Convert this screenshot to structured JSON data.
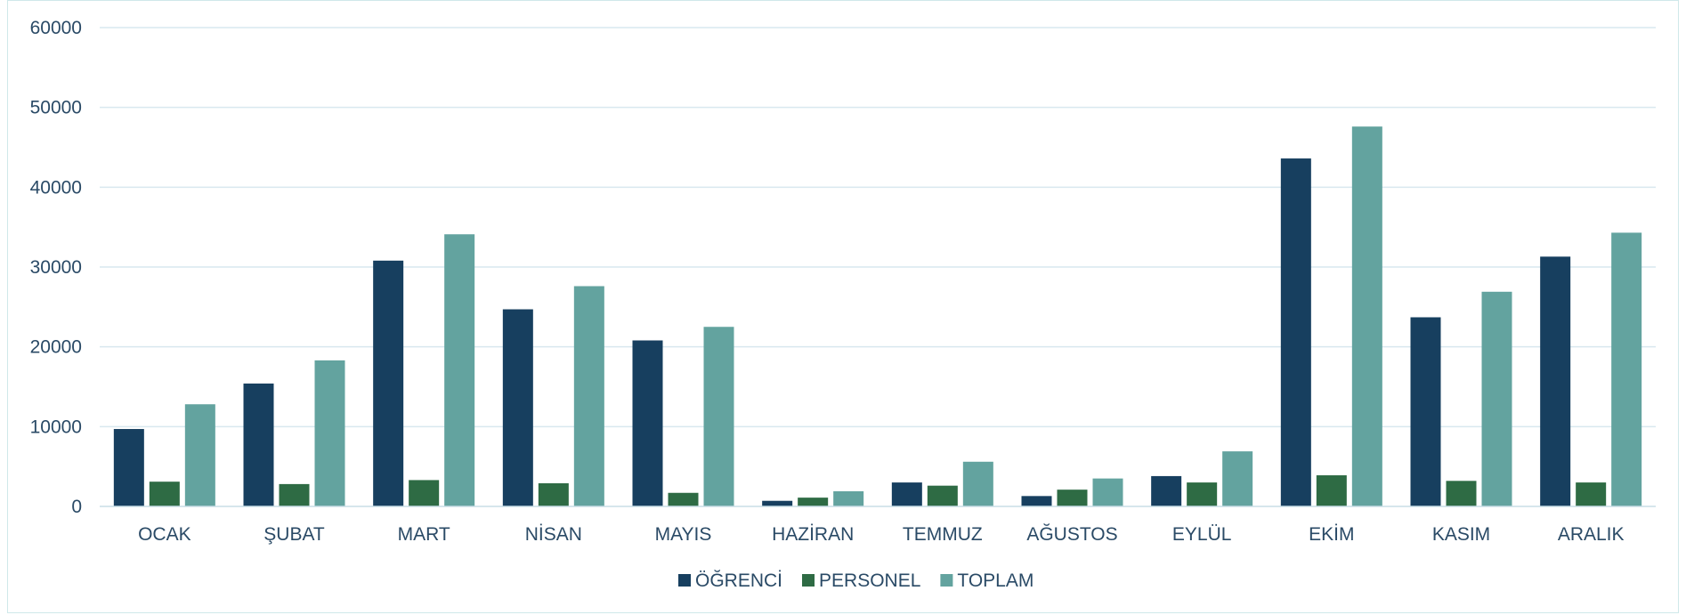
{
  "chart_data": {
    "type": "bar",
    "title": "",
    "xlabel": "",
    "ylabel": "",
    "ylim": [
      0,
      60000
    ],
    "yticks": [
      0,
      10000,
      20000,
      30000,
      40000,
      50000,
      60000
    ],
    "grid": true,
    "legend_position": "bottom",
    "categories": [
      "OCAK",
      "ŞUBAT",
      "MART",
      "NİSAN",
      "MAYIS",
      "HAZİRAN",
      "TEMMUZ",
      "AĞUSTOS",
      "EYLÜL",
      "EKİM",
      "KASIM",
      "ARALIK"
    ],
    "series": [
      {
        "name": "ÖĞRENCİ",
        "color": "#173f5f",
        "values": [
          9700,
          15400,
          30800,
          24700,
          20800,
          700,
          3000,
          1300,
          3800,
          43600,
          23700,
          31300
        ]
      },
      {
        "name": "PERSONEL",
        "color": "#2e6b44",
        "values": [
          3100,
          2800,
          3300,
          2900,
          1700,
          1100,
          2600,
          2100,
          3000,
          3900,
          3200,
          3000
        ]
      },
      {
        "name": "TOPLAM",
        "color": "#63a39f",
        "values": [
          12800,
          18300,
          34100,
          27600,
          22500,
          1900,
          5600,
          3500,
          6900,
          47600,
          26900,
          34300
        ]
      }
    ]
  }
}
